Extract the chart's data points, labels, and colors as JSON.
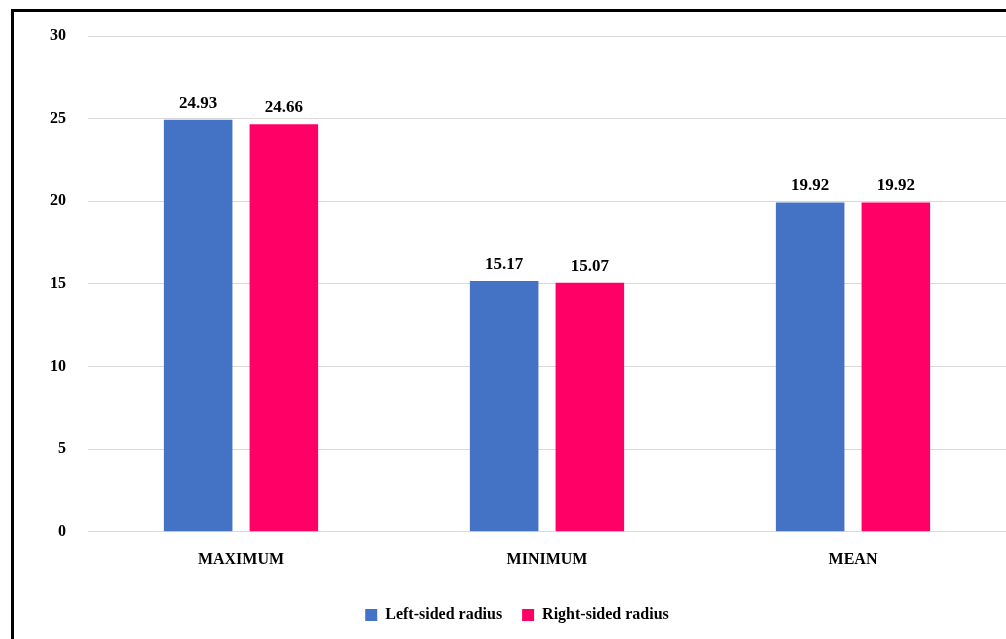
{
  "chart_data": {
    "type": "bar",
    "categories": [
      "MAXIMUM",
      "MINIMUM",
      "MEAN"
    ],
    "series": [
      {
        "name": "Left-sided radius",
        "color": "#4472c4",
        "values": [
          24.93,
          15.17,
          19.92
        ]
      },
      {
        "name": "Right-sided radius",
        "color": "#ff0066",
        "values": [
          24.66,
          15.07,
          19.92
        ]
      }
    ],
    "ylim": [
      0,
      30
    ],
    "yticks": [
      0,
      5,
      10,
      15,
      20,
      25,
      30
    ],
    "grid": "y",
    "legend": "bottom",
    "data_labels": true
  }
}
